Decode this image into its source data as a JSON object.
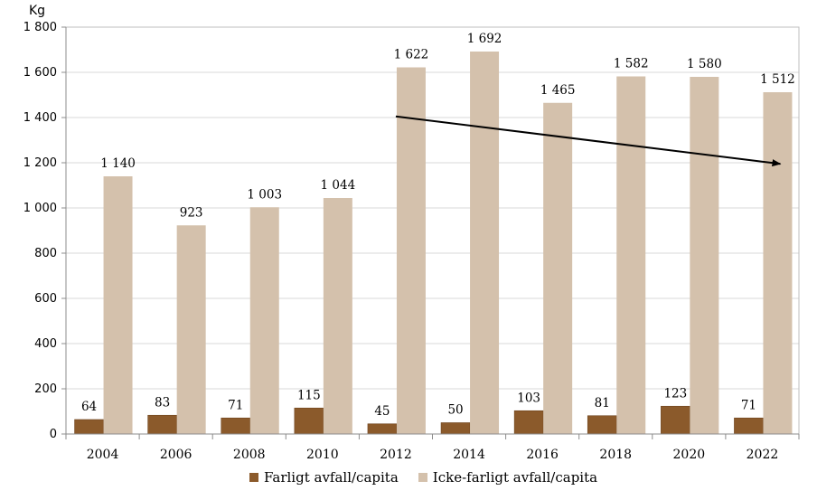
{
  "chart_data": {
    "type": "bar",
    "ylabel": "Kg",
    "categories": [
      "2004",
      "2006",
      "2008",
      "2010",
      "2012",
      "2014",
      "2016",
      "2018",
      "2020",
      "2022"
    ],
    "series": [
      {
        "name": "Farligt avfall/capita",
        "color": "#8b5a2b",
        "values": [
          64,
          83,
          71,
          115,
          45,
          50,
          103,
          81,
          123,
          71
        ],
        "labels": [
          "64",
          "83",
          "71",
          "115",
          "45",
          "50",
          "103",
          "81",
          "123",
          "71"
        ]
      },
      {
        "name": "Icke-farligt avfall/capita",
        "color": "#d4c1ac",
        "values": [
          1140,
          923,
          1003,
          1044,
          1622,
          1692,
          1465,
          1582,
          1580,
          1512
        ],
        "labels": [
          "1 140",
          "923",
          "1 003",
          "1 044",
          "1 622",
          "1 692",
          "1 465",
          "1 582",
          "1 580",
          "1 512"
        ]
      }
    ],
    "ylim": [
      0,
      1800
    ],
    "yticks": [
      0,
      200,
      400,
      600,
      800,
      1000,
      1200,
      1400,
      1600,
      1800
    ],
    "ytick_labels": [
      "0",
      "200",
      "400",
      "600",
      "800",
      "1 000",
      "1 200",
      "1 400",
      "1 600",
      "1 800"
    ],
    "grid": true,
    "legend_position": "bottom",
    "annotation": {
      "type": "arrow",
      "from": {
        "x": "2012",
        "y": 1405
      },
      "to": {
        "x": "2022",
        "y": 1195
      }
    }
  }
}
